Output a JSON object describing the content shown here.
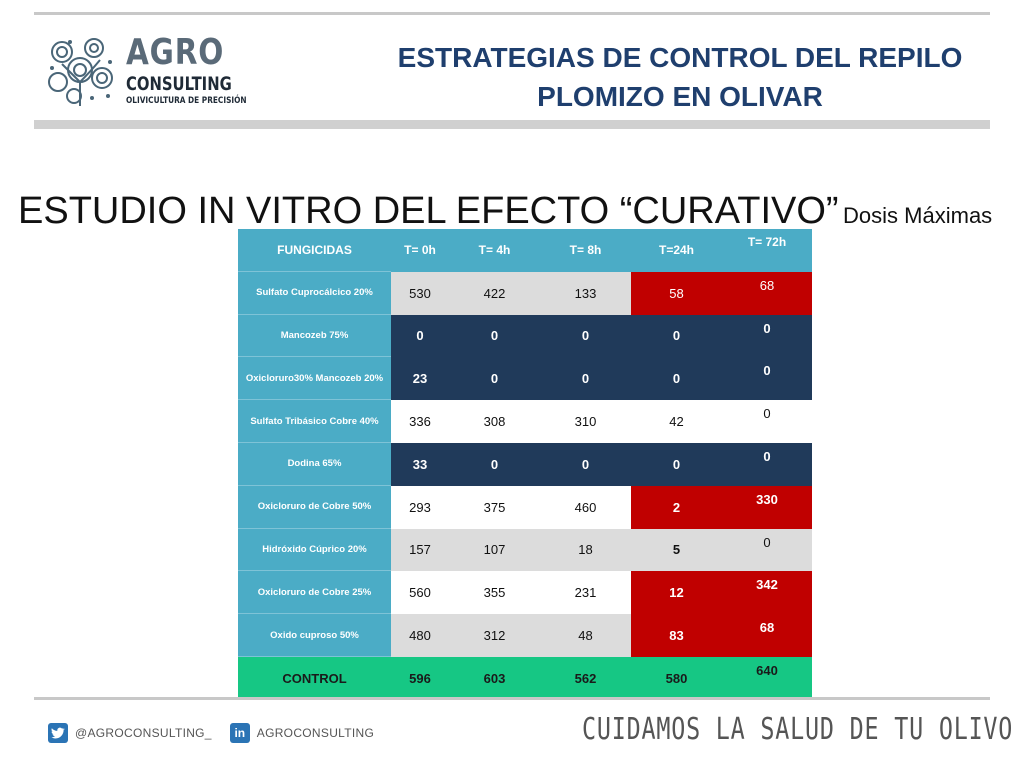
{
  "header": {
    "logo": {
      "agro": "AGRO",
      "consulting": "CONSULTING",
      "tagline": "OLIVICULTURA DE PRECISIÓN"
    },
    "title_line1": "ESTRATEGIAS DE CONTROL DEL REPILO",
    "title_line2": "PLOMIZO EN OLIVAR"
  },
  "study": {
    "title": "ESTUDIO IN VITRO DEL EFECTO “CURATIVO”",
    "subtitle": "Dosis Máximas"
  },
  "table": {
    "headers": [
      "FUNGICIDAS",
      "T= 0h",
      "T= 4h",
      "T= 8h",
      "T=24h",
      "T= 72h"
    ],
    "rows": [
      {
        "name": "Sulfato Cuprocálcico 20%",
        "values": [
          "530",
          "422",
          "133",
          "58",
          "68"
        ]
      },
      {
        "name": "Mancozeb 75%",
        "values": [
          "0",
          "0",
          "0",
          "0",
          "0"
        ]
      },
      {
        "name": "Oxicloruro30% Mancozeb 20%",
        "values": [
          "23",
          "0",
          "0",
          "0",
          "0"
        ]
      },
      {
        "name": "Sulfato Tribásico Cobre 40%",
        "values": [
          "336",
          "308",
          "310",
          "42",
          "0"
        ]
      },
      {
        "name": "Dodina 65%",
        "values": [
          "33",
          "0",
          "0",
          "0",
          "0"
        ]
      },
      {
        "name": "Oxicloruro de Cobre 50%",
        "values": [
          "293",
          "375",
          "460",
          "2",
          "330"
        ]
      },
      {
        "name": "Hidróxido Cúprico 20%",
        "values": [
          "157",
          "107",
          "18",
          "5",
          "0"
        ]
      },
      {
        "name": "Oxicloruro de Cobre 25%",
        "values": [
          "560",
          "355",
          "231",
          "12",
          "342"
        ]
      },
      {
        "name": "Oxido cuproso 50%",
        "values": [
          "480",
          "312",
          "48",
          "83",
          "68"
        ]
      }
    ],
    "control": {
      "name": "CONTROL",
      "values": [
        "596",
        "603",
        "562",
        "580",
        "640"
      ]
    }
  },
  "footer": {
    "twitter_handle": "@AGROCONSULTING_",
    "linkedin_handle": "AGROCONSULTING",
    "slogan": "CUIDAMOS LA SALUD DE TU OLIVO"
  },
  "icons": {
    "twitter": "twitter-icon",
    "linkedin": "linkedin-icon",
    "logo": "olive-tree-logo-icon"
  },
  "colors": {
    "header_title": "#1f3f6e",
    "table_header": "#4bacc6",
    "dark_cell": "#203a5a",
    "red_cell": "#c00000",
    "control_row": "#16c784"
  }
}
